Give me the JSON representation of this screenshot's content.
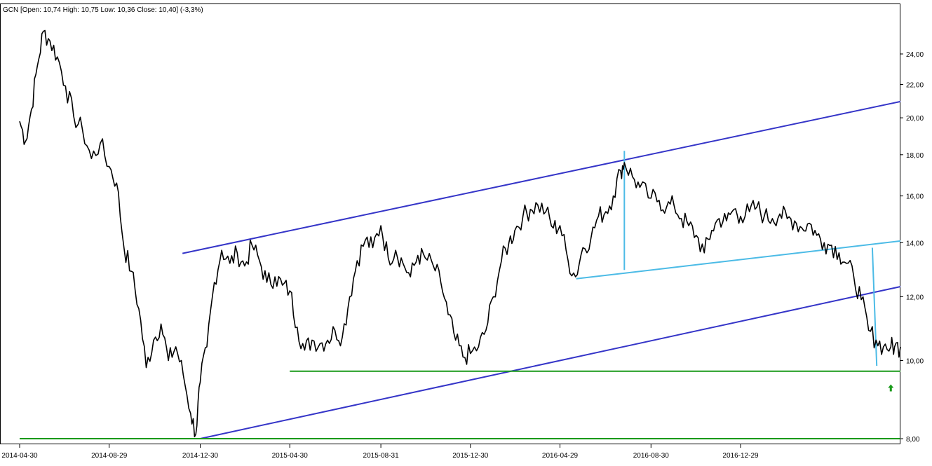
{
  "chart_data": {
    "type": "line",
    "title": "GCN [Open: 10,74  High: 10,75  Low: 10,36  Close: 10,40] (-3,3%)",
    "xlabel": "",
    "ylabel": "",
    "y_scale": "log",
    "ylim": [
      7.82,
      27.4
    ],
    "xlim": [
      "2014-04-30",
      "2017-08-02"
    ],
    "grid": false,
    "y_ticks": [
      {
        "value": 8,
        "label": "8,00"
      },
      {
        "value": 10,
        "label": "10,00"
      },
      {
        "value": 12,
        "label": "12,00"
      },
      {
        "value": 14,
        "label": "14,00"
      },
      {
        "value": 16,
        "label": "16,00"
      },
      {
        "value": 18,
        "label": "18,00"
      },
      {
        "value": 20,
        "label": "20,00"
      },
      {
        "value": 22,
        "label": "22,00"
      },
      {
        "value": 24,
        "label": "24,00"
      }
    ],
    "x_ticks": [
      "2014-04-30",
      "2014-08-29",
      "2014-12-30",
      "2015-04-30",
      "2015-08-31",
      "2015-12-30",
      "2016-04-29",
      "2016-08-30",
      "2016-12-29"
    ],
    "series": [
      {
        "values_x": [
          "2014-04-30",
          "2014-05-08",
          "2014-05-16",
          "2014-05-24",
          "2014-06-01",
          "2014-06-10",
          "2014-06-20",
          "2014-07-01",
          "2014-07-12",
          "2014-07-24",
          "2014-08-05",
          "2014-08-17",
          "2014-08-29",
          "2014-09-08",
          "2014-09-18",
          "2014-09-28",
          "2014-10-08",
          "2014-10-18",
          "2014-10-28",
          "2014-11-07",
          "2014-11-17",
          "2014-11-27",
          "2014-12-07",
          "2014-12-17",
          "2014-12-24",
          "2014-12-30",
          "2015-01-08",
          "2015-01-18",
          "2015-01-28",
          "2015-02-08",
          "2015-02-18",
          "2015-02-28",
          "2015-03-10",
          "2015-03-20",
          "2015-03-30",
          "2015-04-10",
          "2015-04-20",
          "2015-04-30",
          "2015-05-10",
          "2015-05-20",
          "2015-05-30",
          "2015-06-10",
          "2015-06-20",
          "2015-06-30",
          "2015-07-10",
          "2015-07-20",
          "2015-07-30",
          "2015-08-10",
          "2015-08-20",
          "2015-08-31",
          "2015-09-10",
          "2015-09-20",
          "2015-09-30",
          "2015-10-10",
          "2015-10-20",
          "2015-10-30",
          "2015-11-10",
          "2015-11-20",
          "2015-11-30",
          "2015-12-10",
          "2015-12-20",
          "2015-12-30",
          "2016-01-10",
          "2016-01-20",
          "2016-01-30",
          "2016-02-10",
          "2016-02-20",
          "2016-02-28",
          "2016-03-10",
          "2016-03-20",
          "2016-03-30",
          "2016-04-10",
          "2016-04-20",
          "2016-04-29",
          "2016-05-10",
          "2016-05-20",
          "2016-05-30",
          "2016-06-10",
          "2016-06-20",
          "2016-06-30",
          "2016-07-10",
          "2016-07-20",
          "2016-07-25",
          "2016-08-05",
          "2016-08-15",
          "2016-08-30",
          "2016-09-10",
          "2016-09-20",
          "2016-09-30",
          "2016-10-10",
          "2016-10-20",
          "2016-10-30",
          "2016-11-10",
          "2016-11-20",
          "2016-11-30",
          "2016-12-10",
          "2016-12-20",
          "2016-12-29",
          "2017-01-10",
          "2017-01-20",
          "2017-01-30",
          "2017-02-10",
          "2017-02-20",
          "2017-03-02",
          "2017-03-12",
          "2017-03-22",
          "2017-04-01",
          "2017-04-11",
          "2017-04-21",
          "2017-05-01",
          "2017-05-11",
          "2017-05-21",
          "2017-05-31",
          "2017-06-10",
          "2017-06-20",
          "2017-06-30",
          "2017-07-10",
          "2017-07-20",
          "2017-07-25",
          "2017-08-02"
        ],
        "values": [
          19.8,
          18.7,
          20.5,
          23.2,
          25.6,
          24.9,
          23.8,
          21.9,
          20.1,
          19.3,
          17.8,
          18.6,
          17.4,
          16.6,
          13.8,
          12.9,
          11.6,
          9.8,
          10.6,
          11.1,
          10.0,
          10.4,
          9.6,
          8.6,
          8.1,
          9.4,
          10.4,
          12.5,
          13.7,
          13.2,
          13.6,
          13.1,
          13.9,
          13.3,
          12.5,
          12.7,
          12.4,
          12.2,
          11.0,
          10.3,
          10.6,
          10.5,
          10.6,
          10.9,
          10.7,
          12.0,
          13.3,
          14.1,
          13.8,
          14.7,
          13.4,
          13.7,
          13.2,
          12.7,
          13.5,
          13.4,
          13.1,
          12.5,
          11.4,
          10.6,
          10.1,
          10.2,
          10.4,
          10.9,
          12.0,
          13.3,
          14.0,
          14.5,
          15.1,
          15.4,
          15.6,
          15.3,
          14.6,
          14.7,
          13.3,
          12.7,
          13.8,
          14.2,
          15.1,
          15.3,
          16.0,
          17.2,
          17.6,
          16.9,
          16.4,
          15.9,
          15.8,
          15.5,
          15.6,
          15.0,
          14.7,
          14.3,
          13.6,
          14.5,
          15.0,
          14.9,
          15.4,
          15.1,
          15.3,
          15.5,
          15.1,
          15.0,
          15.2,
          15.0,
          14.9,
          14.6,
          14.8,
          14.3,
          14.0,
          13.9,
          13.6,
          13.2,
          12.7,
          11.9,
          10.9,
          10.6,
          10.4,
          10.4,
          10.4,
          10.4
        ]
      }
    ],
    "lines": [
      {
        "name": "channel-upper",
        "color": "#3535c8",
        "from": {
          "x": "2014-12-06",
          "y": 13.58
        },
        "to": {
          "x": "2017-08-02",
          "y": 20.95
        }
      },
      {
        "name": "channel-lower",
        "color": "#3535c8",
        "from": {
          "x": "2014-12-30",
          "y": 8.0
        },
        "to": {
          "x": "2017-08-02",
          "y": 12.35
        }
      },
      {
        "name": "neckline",
        "color": "#4cbbe6",
        "from": {
          "x": "2016-05-21",
          "y": 12.63
        },
        "to": {
          "x": "2017-08-02",
          "y": 14.07
        }
      },
      {
        "name": "target-top-measure",
        "color": "#4cbbe6",
        "from": {
          "x": "2016-07-25",
          "y": 18.2
        },
        "to": {
          "x": "2016-07-25",
          "y": 12.95
        }
      },
      {
        "name": "target-projection",
        "color": "#4cbbe6",
        "from": {
          "x": "2017-06-25",
          "y": 13.8
        },
        "to": {
          "x": "2017-07-01",
          "y": 9.85
        }
      },
      {
        "name": "support-9-70",
        "color": "#1a9a1a",
        "from": {
          "x": "2015-04-30",
          "y": 9.7
        },
        "to": {
          "x": "2017-08-02",
          "y": 9.7
        }
      },
      {
        "name": "support-8-00",
        "color": "#1a9a1a",
        "from": {
          "x": "2014-04-30",
          "y": 8.0
        },
        "to": {
          "x": "2017-08-02",
          "y": 8.0
        }
      }
    ],
    "markers": [
      {
        "name": "green-up-arrow",
        "color": "#1a9a1a",
        "x": "2017-07-20",
        "y": 9.25
      }
    ]
  },
  "colors": {
    "background": "#ffffff",
    "price": "#000000",
    "axis": "#000000",
    "channel": "#3535c8",
    "pattern": "#4cbbe6",
    "support": "#1a9a1a"
  }
}
